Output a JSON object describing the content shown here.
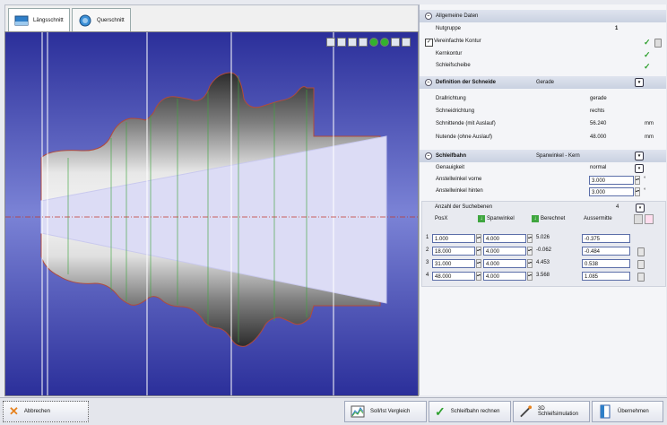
{
  "tabs": [
    {
      "label": "Längsschnitt",
      "icon": "longitudinal-section-icon"
    },
    {
      "label": "Querschnitt",
      "icon": "cross-section-icon"
    }
  ],
  "panel": {
    "allgemein": {
      "header": "Allgemeine Daten",
      "nutgruppe_label": "Nutgruppe",
      "nutgruppe_value": "1",
      "vereinfachte_kontur": "Vereinfachte Kontur",
      "kernkontur": "Kernkontur",
      "schleifscheibe": "Schleifscheibe"
    },
    "schneide": {
      "header": "Definition der Schneide",
      "header_value": "Gerade",
      "rows": [
        {
          "label": "Drallrichtung",
          "value": "gerade",
          "unit": ""
        },
        {
          "label": "Schneidrichtung",
          "value": "rechts",
          "unit": ""
        },
        {
          "label": "Schnittende (mit Auslauf)",
          "value": "56.240",
          "unit": "mm"
        },
        {
          "label": "Nutende (ohne Auslauf)",
          "value": "48.000",
          "unit": "mm"
        }
      ]
    },
    "schleifbahn": {
      "header": "Schleifbahn",
      "header_value": "Spanwinkel - Kern",
      "genauigkeit_label": "Genauigkeit",
      "genauigkeit_value": "normal",
      "anstell_vorne_label": "Anstellwinkel vorne",
      "anstell_vorne_value": "3.000",
      "anstell_hinten_label": "Anstellwinkel hinten",
      "anstell_hinten_value": "3.000",
      "degree_symbol": "°",
      "suchebenen_label": "Anzahl der Suchebenen",
      "suchebenen_value": "4",
      "columns": [
        "PosX",
        "Spanwinkel",
        "Berechnet",
        "Aussermitte"
      ],
      "rows": [
        {
          "idx": "1",
          "posx": "1.000",
          "span": "4.000",
          "ber": "5.026",
          "aus": "-0.375"
        },
        {
          "idx": "2",
          "posx": "18.000",
          "span": "4.000",
          "ber": "-0.062",
          "aus": "-0.484"
        },
        {
          "idx": "3",
          "posx": "31.000",
          "span": "4.000",
          "ber": "4.453",
          "aus": "0.538"
        },
        {
          "idx": "4",
          "posx": "48.000",
          "span": "4.000",
          "ber": "3.568",
          "aus": "1.085"
        }
      ]
    }
  },
  "bottom": {
    "abbrechen": "Abbrechen",
    "vergleich": "Soll/Ist Vergleich",
    "rechnen": "Schleifbahn rechnen",
    "simulation": "3D Schleifsimulation",
    "uebernehmen": "Übernehmen"
  },
  "colors": {
    "accent": "#3a3fa8",
    "check": "#2ea02e",
    "cancel": "#e6821e"
  }
}
